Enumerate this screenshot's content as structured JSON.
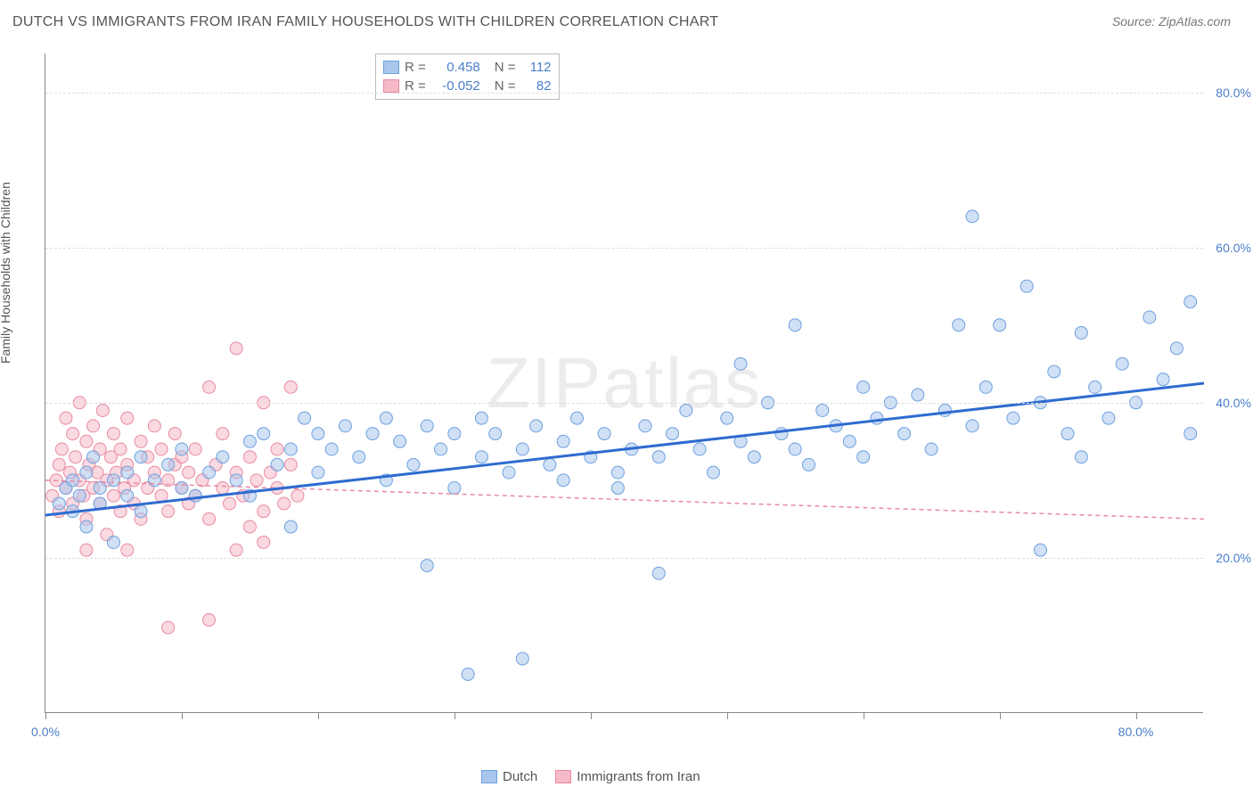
{
  "title": "DUTCH VS IMMIGRANTS FROM IRAN FAMILY HOUSEHOLDS WITH CHILDREN CORRELATION CHART",
  "source_label": "Source: ZipAtlas.com",
  "watermark": "ZIPatlas",
  "y_axis_label": "Family Households with Children",
  "chart": {
    "type": "scatter",
    "xlim": [
      0,
      85
    ],
    "ylim": [
      0,
      85
    ],
    "y_ticks": [
      20,
      40,
      60,
      80
    ],
    "y_tick_labels": [
      "20.0%",
      "40.0%",
      "60.0%",
      "80.0%"
    ],
    "x_ticks": [
      0,
      10,
      20,
      30,
      40,
      50,
      60,
      70,
      80
    ],
    "x_tick_labels_shown": {
      "0": "0.0%",
      "80": "80.0%"
    },
    "grid_color": "#dddddd",
    "axis_color": "#888888",
    "label_color": "#4a7ec9",
    "background_color": "#ffffff",
    "marker_radius": 7,
    "marker_opacity": 0.55,
    "series": [
      {
        "name": "Dutch",
        "fill_color": "#a9c7ed",
        "stroke_color": "#6ea0de",
        "trend_color": "#2e6bd0",
        "trend_width": 3,
        "trend_dash": "none",
        "R": "0.458",
        "N": "112",
        "trend_start": [
          0,
          25.5
        ],
        "trend_end": [
          85,
          42.5
        ],
        "points": [
          [
            1,
            27
          ],
          [
            1.5,
            29
          ],
          [
            2,
            30
          ],
          [
            2,
            26
          ],
          [
            2.5,
            28
          ],
          [
            3,
            31
          ],
          [
            3,
            24
          ],
          [
            3.5,
            33
          ],
          [
            4,
            29
          ],
          [
            4,
            27
          ],
          [
            5,
            30
          ],
          [
            5,
            22
          ],
          [
            6,
            31
          ],
          [
            6,
            28
          ],
          [
            7,
            33
          ],
          [
            7,
            26
          ],
          [
            8,
            30
          ],
          [
            9,
            32
          ],
          [
            10,
            29
          ],
          [
            10,
            34
          ],
          [
            11,
            28
          ],
          [
            12,
            31
          ],
          [
            13,
            33
          ],
          [
            14,
            30
          ],
          [
            15,
            35
          ],
          [
            15,
            28
          ],
          [
            16,
            36
          ],
          [
            17,
            32
          ],
          [
            18,
            34
          ],
          [
            18,
            24
          ],
          [
            19,
            38
          ],
          [
            20,
            31
          ],
          [
            20,
            36
          ],
          [
            21,
            34
          ],
          [
            22,
            37
          ],
          [
            23,
            33
          ],
          [
            24,
            36
          ],
          [
            25,
            38
          ],
          [
            25,
            30
          ],
          [
            26,
            35
          ],
          [
            27,
            32
          ],
          [
            28,
            37
          ],
          [
            28,
            19
          ],
          [
            29,
            34
          ],
          [
            30,
            36
          ],
          [
            30,
            29
          ],
          [
            31,
            5
          ],
          [
            32,
            33
          ],
          [
            32,
            38
          ],
          [
            33,
            36
          ],
          [
            34,
            31
          ],
          [
            35,
            7
          ],
          [
            35,
            34
          ],
          [
            36,
            37
          ],
          [
            37,
            32
          ],
          [
            38,
            35
          ],
          [
            38,
            30
          ],
          [
            39,
            38
          ],
          [
            40,
            33
          ],
          [
            41,
            36
          ],
          [
            42,
            31
          ],
          [
            42,
            29
          ],
          [
            43,
            34
          ],
          [
            44,
            37
          ],
          [
            45,
            18
          ],
          [
            45,
            33
          ],
          [
            46,
            36
          ],
          [
            47,
            39
          ],
          [
            48,
            34
          ],
          [
            49,
            31
          ],
          [
            50,
            38
          ],
          [
            51,
            35
          ],
          [
            51,
            45
          ],
          [
            52,
            33
          ],
          [
            53,
            40
          ],
          [
            54,
            36
          ],
          [
            55,
            50
          ],
          [
            55,
            34
          ],
          [
            56,
            32
          ],
          [
            57,
            39
          ],
          [
            58,
            37
          ],
          [
            59,
            35
          ],
          [
            60,
            42
          ],
          [
            60,
            33
          ],
          [
            61,
            38
          ],
          [
            62,
            40
          ],
          [
            63,
            36
          ],
          [
            64,
            41
          ],
          [
            65,
            34
          ],
          [
            66,
            39
          ],
          [
            67,
            50
          ],
          [
            68,
            37
          ],
          [
            68,
            64
          ],
          [
            69,
            42
          ],
          [
            70,
            50
          ],
          [
            71,
            38
          ],
          [
            72,
            55
          ],
          [
            73,
            40
          ],
          [
            73,
            21
          ],
          [
            74,
            44
          ],
          [
            75,
            36
          ],
          [
            76,
            49
          ],
          [
            77,
            42
          ],
          [
            78,
            38
          ],
          [
            79,
            45
          ],
          [
            80,
            40
          ],
          [
            81,
            51
          ],
          [
            82,
            43
          ],
          [
            83,
            47
          ],
          [
            84,
            53
          ],
          [
            84,
            36
          ],
          [
            76,
            33
          ]
        ]
      },
      {
        "name": "Immigrants from Iran",
        "fill_color": "#f5b9c7",
        "stroke_color": "#e98aa2",
        "trend_color": "#e98aa2",
        "trend_width": 1.5,
        "trend_dash": "5,4",
        "R": "-0.052",
        "N": "82",
        "trend_start": [
          0,
          30
        ],
        "trend_end": [
          85,
          25
        ],
        "points": [
          [
            0.5,
            28
          ],
          [
            0.8,
            30
          ],
          [
            1,
            32
          ],
          [
            1,
            26
          ],
          [
            1.2,
            34
          ],
          [
            1.5,
            29
          ],
          [
            1.5,
            38
          ],
          [
            1.8,
            31
          ],
          [
            2,
            27
          ],
          [
            2,
            36
          ],
          [
            2.2,
            33
          ],
          [
            2.5,
            30
          ],
          [
            2.5,
            40
          ],
          [
            2.8,
            28
          ],
          [
            3,
            35
          ],
          [
            3,
            25
          ],
          [
            3.2,
            32
          ],
          [
            3.5,
            29
          ],
          [
            3.5,
            37
          ],
          [
            3.8,
            31
          ],
          [
            4,
            34
          ],
          [
            4,
            27
          ],
          [
            4.2,
            39
          ],
          [
            4.5,
            30
          ],
          [
            4.5,
            23
          ],
          [
            4.8,
            33
          ],
          [
            5,
            28
          ],
          [
            5,
            36
          ],
          [
            5.2,
            31
          ],
          [
            5.5,
            26
          ],
          [
            5.5,
            34
          ],
          [
            5.8,
            29
          ],
          [
            6,
            32
          ],
          [
            6,
            38
          ],
          [
            6.5,
            27
          ],
          [
            6.5,
            30
          ],
          [
            7,
            35
          ],
          [
            7,
            25
          ],
          [
            7.5,
            33
          ],
          [
            7.5,
            29
          ],
          [
            8,
            31
          ],
          [
            8,
            37
          ],
          [
            8.5,
            28
          ],
          [
            8.5,
            34
          ],
          [
            9,
            30
          ],
          [
            9,
            26
          ],
          [
            9.5,
            32
          ],
          [
            9.5,
            36
          ],
          [
            10,
            29
          ],
          [
            10,
            33
          ],
          [
            10.5,
            27
          ],
          [
            10.5,
            31
          ],
          [
            11,
            34
          ],
          [
            11,
            28
          ],
          [
            11.5,
            30
          ],
          [
            12,
            42
          ],
          [
            12,
            25
          ],
          [
            12.5,
            32
          ],
          [
            13,
            29
          ],
          [
            13,
            36
          ],
          [
            13.5,
            27
          ],
          [
            14,
            31
          ],
          [
            14,
            47
          ],
          [
            14.5,
            28
          ],
          [
            15,
            33
          ],
          [
            15,
            24
          ],
          [
            15.5,
            30
          ],
          [
            16,
            40
          ],
          [
            16,
            26
          ],
          [
            16.5,
            31
          ],
          [
            17,
            29
          ],
          [
            17,
            34
          ],
          [
            17.5,
            27
          ],
          [
            18,
            32
          ],
          [
            18,
            42
          ],
          [
            18.5,
            28
          ],
          [
            9,
            11
          ],
          [
            12,
            12
          ],
          [
            3,
            21
          ],
          [
            6,
            21
          ],
          [
            14,
            21
          ],
          [
            16,
            22
          ]
        ]
      }
    ]
  },
  "stats_box": {
    "rows": [
      {
        "swatch_fill": "#a9c7ed",
        "swatch_stroke": "#6ea0de",
        "r_label": "R =",
        "r_val": "0.458",
        "n_label": "N =",
        "n_val": "112"
      },
      {
        "swatch_fill": "#f5b9c7",
        "swatch_stroke": "#e98aa2",
        "r_label": "R =",
        "r_val": "-0.052",
        "n_label": "N =",
        "n_val": "82"
      }
    ]
  },
  "legend": [
    {
      "swatch_fill": "#a9c7ed",
      "swatch_stroke": "#6ea0de",
      "label": "Dutch"
    },
    {
      "swatch_fill": "#f5b9c7",
      "swatch_stroke": "#e98aa2",
      "label": "Immigrants from Iran"
    }
  ]
}
